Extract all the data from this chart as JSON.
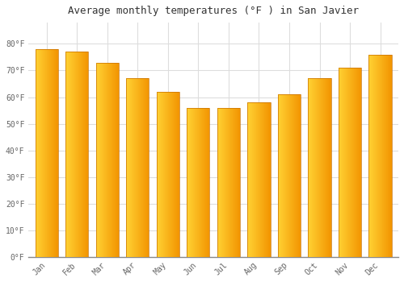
{
  "title": "Average monthly temperatures (°F ) in San Javier",
  "categories": [
    "Jan",
    "Feb",
    "Mar",
    "Apr",
    "May",
    "Jun",
    "Jul",
    "Aug",
    "Sep",
    "Oct",
    "Nov",
    "Dec"
  ],
  "values": [
    78,
    77,
    73,
    67,
    62,
    56,
    56,
    58,
    61,
    67,
    71,
    76
  ],
  "bar_color_main": "#FFA500",
  "bar_color_light": "#FFD060",
  "bar_color_dark": "#E08000",
  "bar_edge_color": "#C87000",
  "ylim": [
    0,
    88
  ],
  "yticks": [
    0,
    10,
    20,
    30,
    40,
    50,
    60,
    70,
    80
  ],
  "ytick_labels": [
    "0°F",
    "10°F",
    "20°F",
    "30°F",
    "40°F",
    "50°F",
    "60°F",
    "70°F",
    "80°F"
  ],
  "title_fontsize": 9,
  "tick_fontsize": 7,
  "background_color": "#ffffff",
  "grid_color": "#dddddd",
  "title_font_family": "monospace"
}
